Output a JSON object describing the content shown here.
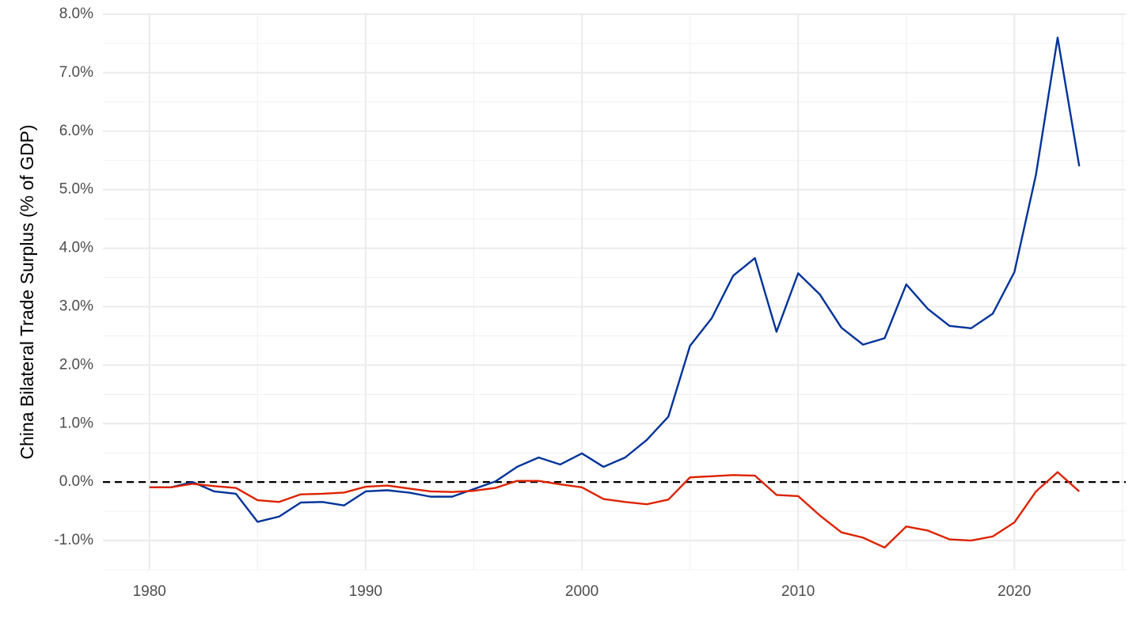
{
  "chart_data": {
    "type": "line",
    "y_label": "China Bilateral Trade Surplus (% of GDP)",
    "x": [
      1980,
      1981,
      1982,
      1983,
      1984,
      1985,
      1986,
      1987,
      1988,
      1989,
      1990,
      1991,
      1992,
      1993,
      1994,
      1995,
      1996,
      1997,
      1998,
      1999,
      2000,
      2001,
      2002,
      2003,
      2004,
      2005,
      2006,
      2007,
      2008,
      2009,
      2010,
      2011,
      2012,
      2013,
      2014,
      2015,
      2016,
      2017,
      2018,
      2019,
      2020,
      2021,
      2022,
      2023
    ],
    "series": [
      {
        "color": "#003399",
        "values": [
          -0.09,
          -0.09,
          0.0,
          -0.16,
          -0.2,
          -0.68,
          -0.59,
          -0.35,
          -0.34,
          -0.4,
          -0.16,
          -0.14,
          -0.18,
          -0.25,
          -0.25,
          -0.12,
          0.01,
          0.26,
          0.42,
          0.3,
          0.49,
          0.26,
          0.42,
          0.72,
          1.12,
          2.33,
          2.8,
          3.53,
          3.83,
          2.57,
          3.57,
          3.21,
          2.64,
          2.35,
          2.46,
          3.38,
          2.96,
          2.67,
          2.63,
          2.88,
          3.59,
          5.26,
          7.6,
          5.4
        ]
      },
      {
        "color": "#dd2200",
        "values": [
          -0.09,
          -0.09,
          -0.03,
          -0.07,
          -0.1,
          -0.31,
          -0.34,
          -0.21,
          -0.2,
          -0.18,
          -0.08,
          -0.06,
          -0.11,
          -0.16,
          -0.17,
          -0.15,
          -0.1,
          0.02,
          0.02,
          -0.04,
          -0.09,
          -0.29,
          -0.34,
          -0.38,
          -0.3,
          0.08,
          0.1,
          0.12,
          0.11,
          -0.22,
          -0.24,
          -0.57,
          -0.86,
          -0.95,
          -1.12,
          -0.76,
          -0.83,
          -0.98,
          -1.0,
          -0.93,
          -0.69,
          -0.16,
          0.17,
          -0.16
        ]
      }
    ],
    "xlim": [
      1977.85,
      2025.15
    ],
    "xticks": [
      1980,
      1990,
      2000,
      2010,
      2020
    ],
    "ylim": [
      -1.5,
      8.0
    ],
    "yticks": [
      {
        "value": -1,
        "label": "-1.0%"
      },
      {
        "value": 0,
        "label": "0.0%"
      },
      {
        "value": 1,
        "label": "1.0%"
      },
      {
        "value": 2,
        "label": "2.0%"
      },
      {
        "value": 3,
        "label": "3.0%"
      },
      {
        "value": 4,
        "label": "4.0%"
      },
      {
        "value": 5,
        "label": "5.0%"
      },
      {
        "value": 6,
        "label": "6.0%"
      },
      {
        "value": 7,
        "label": "7.0%"
      },
      {
        "value": 8,
        "label": "8.0%"
      }
    ],
    "reference_line": 0,
    "grid": true
  }
}
